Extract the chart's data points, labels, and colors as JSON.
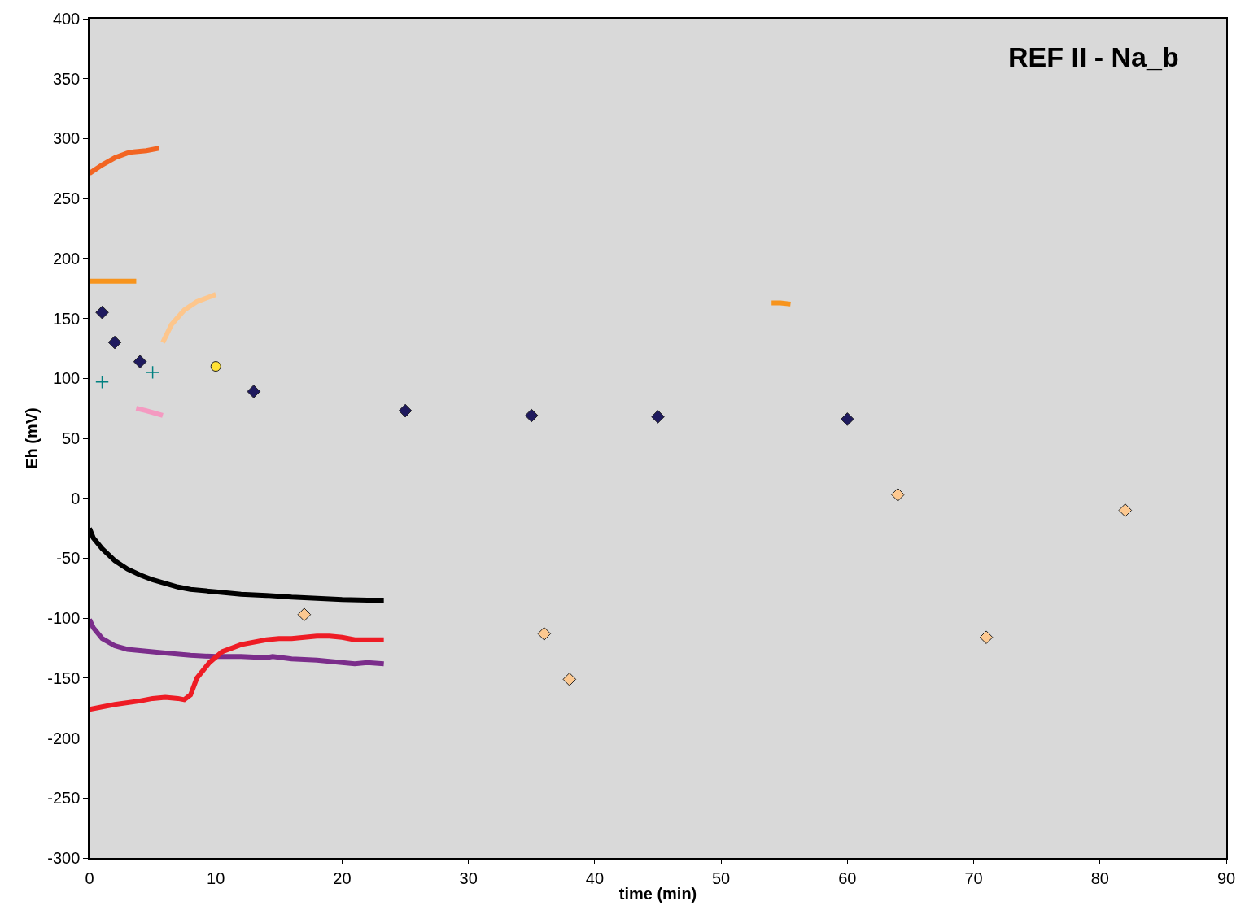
{
  "chart_data": {
    "type": "line",
    "title": "REF II - Na_b",
    "xlabel": "time (min)",
    "ylabel": "Eh (mV)",
    "xlim": [
      0,
      90
    ],
    "xticks": [
      0,
      10,
      20,
      30,
      40,
      50,
      60,
      70,
      80,
      90
    ],
    "ylim": [
      -300,
      400
    ],
    "yticks": [
      -300,
      -250,
      -200,
      -150,
      -100,
      -50,
      0,
      50,
      100,
      150,
      200,
      250,
      300,
      350,
      400
    ],
    "grid": false,
    "series": [
      {
        "marker": "none",
        "color": "#f26522",
        "x": [
          0,
          1,
          2,
          3,
          3.5,
          4.5,
          5.5
        ],
        "values": [
          271,
          278,
          284,
          288,
          289,
          290,
          292
        ]
      },
      {
        "marker": "none",
        "color": "#f7941d",
        "x": [
          0,
          1,
          2,
          3,
          3.7
        ],
        "values": [
          181,
          181,
          181,
          181,
          181
        ]
      },
      {
        "marker": "none",
        "color": "#f7941d",
        "x": [
          54,
          54.7,
          55.5
        ],
        "values": [
          163,
          163,
          162
        ]
      },
      {
        "marker": "none",
        "color": "#fdc68c",
        "x": [
          5.8,
          6.5,
          7.5,
          8.5,
          10
        ],
        "values": [
          130,
          145,
          157,
          164,
          170
        ]
      },
      {
        "marker": "none",
        "color": "#f49ac1",
        "x": [
          3.7,
          4.5,
          5.8
        ],
        "values": [
          75,
          73,
          69
        ]
      },
      {
        "marker": "none",
        "color": "#000000",
        "x": [
          0,
          0.3,
          1,
          2,
          3,
          4,
          5,
          6,
          7,
          8,
          10,
          12,
          14,
          16,
          18,
          20,
          22,
          23.3
        ],
        "values": [
          -25,
          -33,
          -42,
          -52,
          -59,
          -64,
          -68,
          -71,
          -74,
          -76,
          -78,
          -80,
          -81,
          -82.5,
          -83.5,
          -84.5,
          -85,
          -85
        ]
      },
      {
        "marker": "none",
        "color": "#7b2d8b",
        "x": [
          0,
          0.3,
          1,
          2,
          3,
          4,
          6,
          8,
          10,
          12,
          14,
          14.5,
          16,
          18,
          20,
          21,
          22,
          23.3
        ],
        "values": [
          -101,
          -108,
          -117,
          -123,
          -126,
          -127,
          -129,
          -131,
          -132,
          -132,
          -133,
          -132,
          -134,
          -135,
          -137,
          -138,
          -137,
          -138
        ]
      },
      {
        "marker": "none",
        "color": "#ee1c25",
        "x": [
          0,
          1,
          2,
          4,
          5,
          6,
          7,
          7.5,
          8,
          8.5,
          9.5,
          10.5,
          12,
          14,
          15,
          16,
          18,
          19,
          20,
          21,
          22,
          23.3
        ],
        "values": [
          -176,
          -174,
          -172,
          -169,
          -167,
          -166,
          -167,
          -168,
          -164,
          -150,
          -137,
          -128,
          -122,
          -118,
          -117,
          -117,
          -115,
          -115,
          -116,
          -118,
          -118,
          -118
        ]
      },
      {
        "type": "scatter",
        "marker": "diamond",
        "color": "#1f1a5e",
        "x": [
          1,
          2,
          4,
          13,
          25,
          35,
          45,
          60
        ],
        "values": [
          155,
          130,
          114,
          89,
          73,
          69,
          68,
          66
        ]
      },
      {
        "type": "scatter",
        "marker": "cross",
        "color": "#008080",
        "x": [
          1,
          5
        ],
        "values": [
          97,
          105
        ]
      },
      {
        "type": "scatter",
        "marker": "circle",
        "color": "#ffe135",
        "x": [
          10
        ],
        "values": [
          110
        ]
      },
      {
        "type": "scatter",
        "marker": "diamond",
        "color": "#fcc890",
        "x": [
          17,
          36,
          38,
          64,
          71,
          82
        ],
        "values": [
          -97,
          -113,
          -151,
          3,
          -116,
          -10
        ]
      }
    ]
  }
}
